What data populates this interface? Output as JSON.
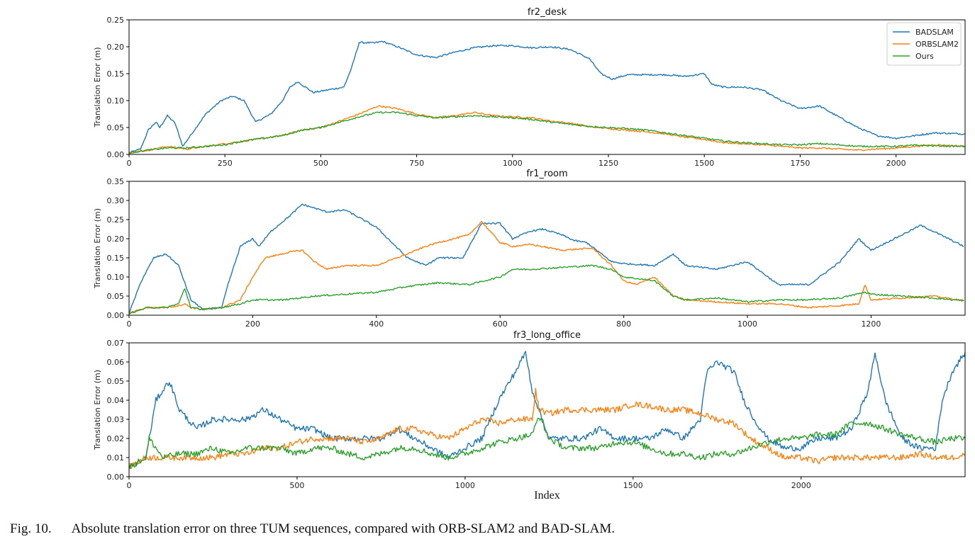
{
  "caption": {
    "label": "Fig. 10.",
    "text": "Absolute translation error on three TUM sequences, compared with ORB-SLAM2 and BAD-SLAM."
  },
  "colors": {
    "BADSLAM": "#1f77b4",
    "ORBSLAM2": "#ff7f0e",
    "Ours": "#2ca02c"
  },
  "chart_data": [
    {
      "type": "line",
      "title": "fr2_desk",
      "xlabel": "",
      "ylabel": "Translation Error (m)",
      "xlim": [
        0,
        2180
      ],
      "ylim": [
        0,
        0.25
      ],
      "xticks": [
        0,
        250,
        500,
        750,
        1000,
        1250,
        1500,
        1750,
        2000
      ],
      "xtick_labels": [
        "0",
        "250",
        "500",
        "750",
        "1000",
        "1250",
        "1500",
        "1750",
        "2000"
      ],
      "yticks": [
        0,
        0.05,
        0.1,
        0.15,
        0.2,
        0.25
      ],
      "ytick_labels": [
        "0.00",
        "0.05",
        "0.10",
        "0.15",
        "0.20",
        "0.25"
      ],
      "grid": false,
      "legend": "top-right",
      "legend_entries": [
        "BADSLAM",
        "ORBSLAM2",
        "Ours"
      ],
      "series": [
        {
          "name": "BADSLAM",
          "x": [
            0,
            30,
            50,
            70,
            80,
            100,
            120,
            140,
            160,
            200,
            240,
            270,
            300,
            330,
            370,
            400,
            420,
            440,
            480,
            520,
            560,
            580,
            600,
            640,
            660,
            700,
            750,
            800,
            850,
            900,
            950,
            1000,
            1050,
            1100,
            1150,
            1200,
            1230,
            1260,
            1300,
            1400,
            1450,
            1500,
            1520,
            1550,
            1600,
            1650,
            1700,
            1750,
            1800,
            1850,
            1900,
            1950,
            2000,
            2050,
            2100,
            2180
          ],
          "y": [
            0.003,
            0.01,
            0.045,
            0.06,
            0.05,
            0.072,
            0.058,
            0.015,
            0.035,
            0.075,
            0.1,
            0.108,
            0.1,
            0.06,
            0.075,
            0.1,
            0.125,
            0.135,
            0.115,
            0.12,
            0.125,
            0.16,
            0.208,
            0.207,
            0.21,
            0.2,
            0.185,
            0.18,
            0.19,
            0.198,
            0.202,
            0.202,
            0.198,
            0.2,
            0.195,
            0.178,
            0.15,
            0.14,
            0.148,
            0.148,
            0.145,
            0.15,
            0.13,
            0.125,
            0.125,
            0.12,
            0.1,
            0.085,
            0.09,
            0.07,
            0.05,
            0.035,
            0.03,
            0.035,
            0.04,
            0.038
          ]
        },
        {
          "name": "ORBSLAM2",
          "x": [
            0,
            50,
            100,
            150,
            200,
            250,
            300,
            350,
            400,
            450,
            500,
            550,
            600,
            650,
            700,
            750,
            800,
            850,
            900,
            950,
            1000,
            1050,
            1100,
            1150,
            1200,
            1250,
            1300,
            1350,
            1400,
            1450,
            1500,
            1550,
            1600,
            1650,
            1700,
            1750,
            1800,
            1850,
            1900,
            1950,
            2000,
            2050,
            2100,
            2180
          ],
          "y": [
            0.003,
            0.008,
            0.015,
            0.01,
            0.015,
            0.02,
            0.025,
            0.03,
            0.035,
            0.045,
            0.05,
            0.062,
            0.075,
            0.09,
            0.085,
            0.075,
            0.068,
            0.072,
            0.078,
            0.072,
            0.07,
            0.068,
            0.062,
            0.058,
            0.052,
            0.048,
            0.045,
            0.042,
            0.038,
            0.032,
            0.028,
            0.022,
            0.02,
            0.018,
            0.015,
            0.012,
            0.012,
            0.01,
            0.008,
            0.01,
            0.012,
            0.015,
            0.018,
            0.015
          ]
        },
        {
          "name": "Ours",
          "x": [
            0,
            50,
            100,
            150,
            200,
            250,
            300,
            350,
            400,
            450,
            500,
            550,
            600,
            650,
            700,
            750,
            800,
            850,
            900,
            950,
            1000,
            1050,
            1100,
            1150,
            1200,
            1250,
            1300,
            1350,
            1400,
            1450,
            1500,
            1550,
            1600,
            1650,
            1700,
            1750,
            1800,
            1850,
            1900,
            1950,
            2000,
            2050,
            2100,
            2180
          ],
          "y": [
            0.003,
            0.008,
            0.012,
            0.012,
            0.015,
            0.018,
            0.025,
            0.03,
            0.035,
            0.045,
            0.05,
            0.06,
            0.07,
            0.078,
            0.078,
            0.072,
            0.068,
            0.07,
            0.072,
            0.07,
            0.068,
            0.065,
            0.06,
            0.056,
            0.052,
            0.05,
            0.048,
            0.045,
            0.04,
            0.035,
            0.03,
            0.025,
            0.022,
            0.02,
            0.018,
            0.018,
            0.02,
            0.018,
            0.015,
            0.015,
            0.015,
            0.017,
            0.016,
            0.015
          ]
        }
      ]
    },
    {
      "type": "line",
      "title": "fr1_room",
      "xlabel": "",
      "ylabel": "Translation Error (m)",
      "xlim": [
        0,
        1352
      ],
      "ylim": [
        0,
        0.35
      ],
      "xticks": [
        0,
        200,
        400,
        600,
        800,
        1000,
        1200
      ],
      "xtick_labels": [
        "0",
        "200",
        "400",
        "600",
        "800",
        "1000",
        "1200"
      ],
      "yticks": [
        0,
        0.05,
        0.1,
        0.15,
        0.2,
        0.25,
        0.3,
        0.35
      ],
      "ytick_labels": [
        "0.00",
        "0.05",
        "0.10",
        "0.15",
        "0.20",
        "0.25",
        "0.30",
        "0.35"
      ],
      "grid": false,
      "series": [
        {
          "name": "BADSLAM",
          "x": [
            0,
            20,
            40,
            60,
            80,
            100,
            120,
            150,
            160,
            180,
            200,
            210,
            230,
            260,
            280,
            300,
            320,
            350,
            400,
            450,
            480,
            500,
            540,
            570,
            600,
            620,
            650,
            670,
            700,
            720,
            740,
            760,
            780,
            800,
            850,
            880,
            900,
            950,
            1000,
            1050,
            1100,
            1150,
            1180,
            1200,
            1250,
            1280,
            1300,
            1350
          ],
          "y": [
            0.005,
            0.09,
            0.15,
            0.16,
            0.13,
            0.04,
            0.015,
            0.02,
            0.08,
            0.18,
            0.2,
            0.18,
            0.22,
            0.26,
            0.29,
            0.28,
            0.27,
            0.275,
            0.23,
            0.15,
            0.13,
            0.15,
            0.15,
            0.24,
            0.24,
            0.2,
            0.22,
            0.225,
            0.21,
            0.195,
            0.19,
            0.165,
            0.14,
            0.135,
            0.13,
            0.16,
            0.13,
            0.12,
            0.14,
            0.08,
            0.08,
            0.14,
            0.2,
            0.17,
            0.21,
            0.235,
            0.22,
            0.18
          ]
        },
        {
          "name": "ORBSLAM2",
          "x": [
            0,
            30,
            60,
            80,
            90,
            100,
            120,
            150,
            180,
            200,
            220,
            260,
            280,
            300,
            320,
            350,
            400,
            450,
            480,
            500,
            550,
            570,
            600,
            620,
            650,
            700,
            750,
            780,
            800,
            820,
            850,
            880,
            900,
            950,
            1000,
            1050,
            1100,
            1150,
            1180,
            1190,
            1200,
            1250,
            1300,
            1350
          ],
          "y": [
            0.005,
            0.02,
            0.02,
            0.025,
            0.03,
            0.02,
            0.015,
            0.02,
            0.04,
            0.1,
            0.15,
            0.165,
            0.17,
            0.14,
            0.12,
            0.13,
            0.13,
            0.16,
            0.18,
            0.19,
            0.21,
            0.245,
            0.19,
            0.18,
            0.185,
            0.17,
            0.175,
            0.13,
            0.09,
            0.08,
            0.1,
            0.05,
            0.04,
            0.035,
            0.03,
            0.03,
            0.02,
            0.025,
            0.03,
            0.08,
            0.04,
            0.045,
            0.05,
            0.038
          ]
        },
        {
          "name": "Ours",
          "x": [
            0,
            30,
            60,
            80,
            90,
            100,
            120,
            150,
            180,
            200,
            220,
            250,
            300,
            350,
            400,
            450,
            500,
            550,
            600,
            620,
            650,
            700,
            750,
            780,
            800,
            850,
            880,
            900,
            950,
            1000,
            1050,
            1100,
            1150,
            1190,
            1200,
            1250,
            1300,
            1350
          ],
          "y": [
            0.005,
            0.02,
            0.02,
            0.03,
            0.07,
            0.02,
            0.015,
            0.02,
            0.03,
            0.04,
            0.04,
            0.04,
            0.05,
            0.055,
            0.06,
            0.075,
            0.085,
            0.08,
            0.1,
            0.12,
            0.12,
            0.125,
            0.13,
            0.12,
            0.1,
            0.09,
            0.05,
            0.04,
            0.045,
            0.035,
            0.04,
            0.04,
            0.045,
            0.06,
            0.055,
            0.05,
            0.045,
            0.038
          ]
        }
      ]
    },
    {
      "type": "line",
      "title": "fr3_long_office",
      "xlabel": "Index",
      "ylabel": "Translation Error (m)",
      "xlim": [
        0,
        2488
      ],
      "ylim": [
        0,
        0.07
      ],
      "xticks": [
        0,
        500,
        1000,
        1500,
        2000
      ],
      "xtick_labels": [
        "0",
        "500",
        "1000",
        "1500",
        "2000"
      ],
      "yticks": [
        0,
        0.01,
        0.02,
        0.03,
        0.04,
        0.05,
        0.06,
        0.07
      ],
      "ytick_labels": [
        "0.00",
        "0.01",
        "0.02",
        "0.03",
        "0.04",
        "0.05",
        "0.06",
        "0.07"
      ],
      "grid": false,
      "series": [
        {
          "name": "BADSLAM",
          "x": [
            0,
            50,
            80,
            100,
            120,
            150,
            200,
            250,
            300,
            350,
            400,
            450,
            500,
            550,
            600,
            650,
            700,
            750,
            800,
            850,
            900,
            950,
            1000,
            1050,
            1100,
            1150,
            1180,
            1200,
            1250,
            1300,
            1350,
            1400,
            1450,
            1500,
            1550,
            1600,
            1650,
            1700,
            1720,
            1750,
            1800,
            1830,
            1860,
            1900,
            1950,
            2000,
            2050,
            2100,
            2150,
            2200,
            2220,
            2250,
            2300,
            2350,
            2400,
            2420,
            2450,
            2488
          ],
          "y": [
            0.005,
            0.01,
            0.04,
            0.045,
            0.05,
            0.035,
            0.025,
            0.03,
            0.03,
            0.03,
            0.035,
            0.03,
            0.025,
            0.025,
            0.02,
            0.02,
            0.02,
            0.02,
            0.025,
            0.02,
            0.015,
            0.01,
            0.015,
            0.02,
            0.04,
            0.055,
            0.065,
            0.045,
            0.02,
            0.02,
            0.02,
            0.025,
            0.02,
            0.02,
            0.02,
            0.025,
            0.02,
            0.03,
            0.055,
            0.06,
            0.055,
            0.04,
            0.03,
            0.02,
            0.015,
            0.015,
            0.02,
            0.02,
            0.025,
            0.045,
            0.065,
            0.04,
            0.02,
            0.015,
            0.015,
            0.04,
            0.055,
            0.065
          ]
        },
        {
          "name": "ORBSLAM2",
          "x": [
            0,
            50,
            100,
            150,
            200,
            250,
            300,
            350,
            400,
            450,
            500,
            550,
            600,
            650,
            700,
            750,
            800,
            850,
            900,
            950,
            1000,
            1050,
            1100,
            1150,
            1200,
            1210,
            1220,
            1250,
            1300,
            1350,
            1400,
            1450,
            1500,
            1550,
            1600,
            1650,
            1700,
            1750,
            1800,
            1850,
            1900,
            1950,
            2000,
            2050,
            2100,
            2150,
            2200,
            2250,
            2300,
            2350,
            2400,
            2450,
            2488
          ],
          "y": [
            0.005,
            0.01,
            0.01,
            0.01,
            0.01,
            0.01,
            0.012,
            0.012,
            0.015,
            0.015,
            0.018,
            0.02,
            0.02,
            0.02,
            0.018,
            0.02,
            0.025,
            0.025,
            0.022,
            0.02,
            0.025,
            0.03,
            0.028,
            0.03,
            0.03,
            0.045,
            0.035,
            0.033,
            0.035,
            0.035,
            0.035,
            0.035,
            0.038,
            0.037,
            0.035,
            0.035,
            0.033,
            0.03,
            0.028,
            0.02,
            0.015,
            0.01,
            0.01,
            0.008,
            0.01,
            0.01,
            0.01,
            0.01,
            0.01,
            0.012,
            0.01,
            0.01,
            0.012
          ]
        },
        {
          "name": "Ours",
          "x": [
            0,
            50,
            60,
            100,
            150,
            200,
            250,
            300,
            350,
            400,
            450,
            500,
            550,
            600,
            650,
            700,
            750,
            800,
            850,
            900,
            950,
            1000,
            1050,
            1100,
            1150,
            1200,
            1220,
            1250,
            1300,
            1350,
            1400,
            1450,
            1500,
            1550,
            1600,
            1650,
            1700,
            1750,
            1800,
            1850,
            1900,
            1950,
            2000,
            2050,
            2100,
            2150,
            2200,
            2250,
            2300,
            2350,
            2400,
            2450,
            2488
          ],
          "y": [
            0.005,
            0.01,
            0.02,
            0.01,
            0.012,
            0.012,
            0.015,
            0.012,
            0.015,
            0.015,
            0.015,
            0.012,
            0.015,
            0.015,
            0.012,
            0.01,
            0.012,
            0.015,
            0.015,
            0.012,
            0.01,
            0.012,
            0.015,
            0.018,
            0.02,
            0.022,
            0.032,
            0.02,
            0.015,
            0.015,
            0.015,
            0.018,
            0.018,
            0.015,
            0.012,
            0.012,
            0.01,
            0.012,
            0.012,
            0.015,
            0.018,
            0.02,
            0.02,
            0.022,
            0.022,
            0.028,
            0.028,
            0.025,
            0.022,
            0.02,
            0.018,
            0.02,
            0.02
          ]
        }
      ]
    }
  ]
}
